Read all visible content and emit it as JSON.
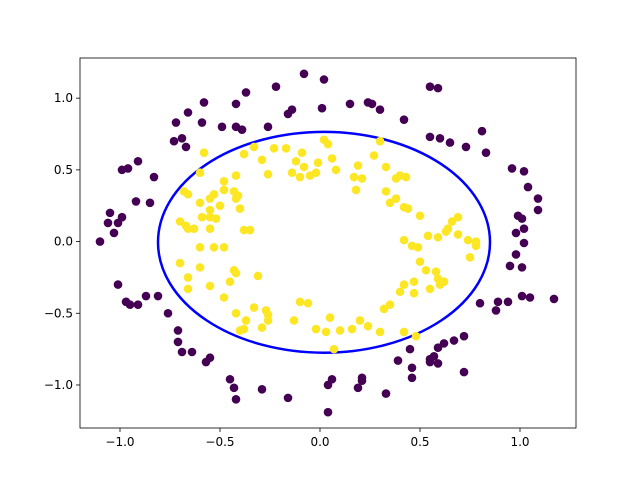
{
  "chart_data": {
    "type": "scatter",
    "title": "",
    "xlabel": "",
    "ylabel": "",
    "xlim": [
      -1.2,
      1.28
    ],
    "ylim": [
      -1.3,
      1.28
    ],
    "grid": false,
    "x_ticks": [
      {
        "value": -1.0,
        "label": "−1.0"
      },
      {
        "value": -0.5,
        "label": "−0.5"
      },
      {
        "value": 0.0,
        "label": "0.0"
      },
      {
        "value": 0.5,
        "label": "0.5"
      },
      {
        "value": 1.0,
        "label": "1.0"
      }
    ],
    "y_ticks": [
      {
        "value": -1.0,
        "label": "−1.0"
      },
      {
        "value": -0.5,
        "label": "−0.5"
      },
      {
        "value": 0.0,
        "label": "0.0"
      },
      {
        "value": 0.5,
        "label": "0.5"
      },
      {
        "value": 1.0,
        "label": "1.0"
      }
    ],
    "boundary": {
      "shape": "ellipse",
      "center": [
        0.02,
        -0.005
      ],
      "radius_x": 0.83,
      "radius_y": 0.77,
      "color": "#0000ff"
    },
    "series": [
      {
        "class": 0,
        "color": "#440154",
        "points": [
          [
            -0.08,
            1.17
          ],
          [
            0.02,
            1.13
          ],
          [
            -0.22,
            1.08
          ],
          [
            -0.37,
            1.04
          ],
          [
            -0.42,
            0.96
          ],
          [
            -0.58,
            0.97
          ],
          [
            -0.66,
            0.9
          ],
          [
            -0.72,
            0.83
          ],
          [
            -0.59,
            0.83
          ],
          [
            -0.49,
            0.8
          ],
          [
            -0.42,
            0.8
          ],
          [
            -0.39,
            0.78
          ],
          [
            -0.26,
            0.8
          ],
          [
            -0.16,
            0.89
          ],
          [
            -0.14,
            0.92
          ],
          [
            0.01,
            0.93
          ],
          [
            0.15,
            0.96
          ],
          [
            0.24,
            0.97
          ],
          [
            0.26,
            0.96
          ],
          [
            0.3,
            0.92
          ],
          [
            0.42,
            0.85
          ],
          [
            0.55,
            1.08
          ],
          [
            0.59,
            1.07
          ],
          [
            0.55,
            0.73
          ],
          [
            0.6,
            0.72
          ],
          [
            0.65,
            0.69
          ],
          [
            0.73,
            0.66
          ],
          [
            0.81,
            0.77
          ],
          [
            0.83,
            0.62
          ],
          [
            0.96,
            0.51
          ],
          [
            1.02,
            0.49
          ],
          [
            1.04,
            0.38
          ],
          [
            1.09,
            0.3
          ],
          [
            1.09,
            0.22
          ],
          [
            0.99,
            0.18
          ],
          [
            1.01,
            0.16
          ],
          [
            1.02,
            0.09
          ],
          [
            0.98,
            0.06
          ],
          [
            1.02,
            -0.01
          ],
          [
            0.98,
            -0.09
          ],
          [
            0.95,
            -0.17
          ],
          [
            1.01,
            -0.18
          ],
          [
            0.89,
            -0.42
          ],
          [
            0.88,
            -0.48
          ],
          [
            0.94,
            -0.42
          ],
          [
            1.01,
            -0.38
          ],
          [
            1.05,
            -0.39
          ],
          [
            1.17,
            -0.4
          ],
          [
            0.8,
            -0.43
          ],
          [
            0.72,
            -0.66
          ],
          [
            0.67,
            -0.69
          ],
          [
            0.62,
            -0.71
          ],
          [
            0.59,
            -0.74
          ],
          [
            0.57,
            -0.8
          ],
          [
            0.45,
            -0.75
          ],
          [
            0.55,
            -0.84
          ],
          [
            0.55,
            -0.82
          ],
          [
            0.59,
            -0.85
          ],
          [
            0.72,
            -0.91
          ],
          [
            0.46,
            -0.88
          ],
          [
            0.46,
            -0.95
          ],
          [
            0.39,
            -0.83
          ],
          [
            0.33,
            -1.06
          ],
          [
            0.21,
            -0.95
          ],
          [
            0.21,
            -0.97
          ],
          [
            0.19,
            -1.02
          ],
          [
            0.06,
            -0.96
          ],
          [
            0.04,
            -1.0
          ],
          [
            0.04,
            -1.19
          ],
          [
            -0.16,
            -1.09
          ],
          [
            -0.29,
            -1.03
          ],
          [
            -0.42,
            -1.1
          ],
          [
            -0.43,
            -1.02
          ],
          [
            -0.45,
            -0.96
          ],
          [
            -0.55,
            -0.81
          ],
          [
            -0.57,
            -0.84
          ],
          [
            -0.64,
            -0.77
          ],
          [
            -0.69,
            -0.77
          ],
          [
            -0.71,
            -0.62
          ],
          [
            -0.71,
            -0.7
          ],
          [
            -0.76,
            -0.5
          ],
          [
            -0.81,
            -0.38
          ],
          [
            -0.87,
            -0.38
          ],
          [
            -0.91,
            -0.44
          ],
          [
            -0.95,
            -0.44
          ],
          [
            -0.97,
            -0.42
          ],
          [
            -1.01,
            -0.3
          ],
          [
            -1.1,
            0.0
          ],
          [
            -1.03,
            0.06
          ],
          [
            -1.01,
            0.13
          ],
          [
            -1.06,
            0.13
          ],
          [
            -1.05,
            0.2
          ],
          [
            -0.99,
            0.17
          ],
          [
            -0.92,
            0.28
          ],
          [
            -0.85,
            0.27
          ],
          [
            -0.91,
            0.56
          ],
          [
            -0.83,
            0.45
          ],
          [
            -0.99,
            0.5
          ],
          [
            -0.96,
            0.51
          ],
          [
            -0.73,
            0.7
          ],
          [
            -0.69,
            0.72
          ],
          [
            -0.67,
            0.66
          ]
        ]
      },
      {
        "class": 1,
        "color": "#fde725",
        "points": [
          [
            -0.23,
            0.65
          ],
          [
            -0.17,
            0.65
          ],
          [
            -0.12,
            0.56
          ],
          [
            -0.14,
            0.48
          ],
          [
            -0.26,
            0.47
          ],
          [
            -0.29,
            0.57
          ],
          [
            -0.38,
            0.61
          ],
          [
            -0.33,
            0.66
          ],
          [
            -0.42,
            0.46
          ],
          [
            -0.48,
            0.42
          ],
          [
            -0.6,
            0.48
          ],
          [
            -0.58,
            0.62
          ],
          [
            -0.68,
            0.35
          ],
          [
            -0.66,
            0.33
          ],
          [
            -0.53,
            0.33
          ],
          [
            -0.43,
            0.35
          ],
          [
            -0.48,
            0.36
          ],
          [
            -0.42,
            0.3
          ],
          [
            -0.55,
            0.3
          ],
          [
            -0.6,
            0.27
          ],
          [
            -0.55,
            0.22
          ],
          [
            -0.5,
            0.25
          ],
          [
            -0.41,
            0.32
          ],
          [
            -0.4,
            0.23
          ],
          [
            -0.55,
            0.17
          ],
          [
            -0.59,
            0.17
          ],
          [
            -0.52,
            0.16
          ],
          [
            -0.7,
            0.14
          ],
          [
            -0.67,
            0.11
          ],
          [
            -0.66,
            0.09
          ],
          [
            -0.63,
            0.09
          ],
          [
            -0.55,
            0.09
          ],
          [
            -0.38,
            0.08
          ],
          [
            -0.35,
            0.08
          ],
          [
            -0.6,
            -0.04
          ],
          [
            -0.53,
            -0.04
          ],
          [
            -0.48,
            -0.04
          ],
          [
            -0.7,
            -0.15
          ],
          [
            -0.6,
            -0.18
          ],
          [
            -0.43,
            -0.2
          ],
          [
            -0.42,
            -0.22
          ],
          [
            -0.31,
            -0.24
          ],
          [
            -0.45,
            -0.28
          ],
          [
            -0.55,
            -0.31
          ],
          [
            -0.66,
            -0.25
          ],
          [
            -0.66,
            -0.33
          ],
          [
            -0.48,
            -0.39
          ],
          [
            -0.33,
            -0.46
          ],
          [
            -0.27,
            -0.48
          ],
          [
            -0.42,
            -0.5
          ],
          [
            -0.37,
            -0.55
          ],
          [
            -0.26,
            -0.51
          ],
          [
            -0.26,
            -0.55
          ],
          [
            -0.29,
            -0.6
          ],
          [
            -0.38,
            -0.61
          ],
          [
            -0.4,
            -0.62
          ],
          [
            -0.13,
            -0.55
          ],
          [
            -0.1,
            -0.42
          ],
          [
            -0.06,
            -0.43
          ],
          [
            0.05,
            -0.53
          ],
          [
            -0.02,
            -0.61
          ],
          [
            0.03,
            -0.63
          ],
          [
            0.1,
            -0.62
          ],
          [
            0.07,
            -0.75
          ],
          [
            0.16,
            -0.61
          ],
          [
            0.2,
            -0.55
          ],
          [
            0.24,
            -0.59
          ],
          [
            0.3,
            -0.63
          ],
          [
            0.42,
            -0.63
          ],
          [
            0.48,
            -0.66
          ],
          [
            0.32,
            -0.47
          ],
          [
            0.35,
            -0.44
          ],
          [
            0.4,
            -0.35
          ],
          [
            0.42,
            -0.3
          ],
          [
            0.47,
            -0.28
          ],
          [
            0.47,
            -0.36
          ],
          [
            0.55,
            -0.33
          ],
          [
            0.62,
            -0.28
          ],
          [
            0.58,
            -0.21
          ],
          [
            0.59,
            -0.26
          ],
          [
            0.5,
            -0.14
          ],
          [
            0.53,
            -0.2
          ],
          [
            0.6,
            -0.3
          ],
          [
            0.49,
            -0.04
          ],
          [
            0.46,
            -0.03
          ],
          [
            0.42,
            0.01
          ],
          [
            0.54,
            0.04
          ],
          [
            0.59,
            0.03
          ],
          [
            0.69,
            0.05
          ],
          [
            0.63,
            0.07
          ],
          [
            0.64,
            0.09
          ],
          [
            0.66,
            0.14
          ],
          [
            0.69,
            0.17
          ],
          [
            0.74,
            0.01
          ],
          [
            0.78,
            0.0
          ],
          [
            0.78,
            -0.03
          ],
          [
            0.75,
            -0.11
          ],
          [
            0.5,
            0.18
          ],
          [
            0.44,
            0.23
          ],
          [
            0.42,
            0.24
          ],
          [
            0.35,
            0.27
          ],
          [
            0.38,
            0.3
          ],
          [
            0.33,
            0.35
          ],
          [
            0.38,
            0.44
          ],
          [
            0.4,
            0.46
          ],
          [
            0.43,
            0.45
          ],
          [
            0.33,
            0.52
          ],
          [
            0.19,
            0.53
          ],
          [
            0.17,
            0.45
          ],
          [
            0.21,
            0.44
          ],
          [
            0.18,
            0.36
          ],
          [
            0.08,
            0.5
          ],
          [
            0.06,
            0.58
          ],
          [
            -0.01,
            0.55
          ],
          [
            -0.02,
            0.48
          ],
          [
            -0.05,
            0.46
          ],
          [
            -0.1,
            0.45
          ],
          [
            -0.08,
            0.52
          ],
          [
            -0.09,
            0.62
          ],
          [
            0.02,
            0.71
          ],
          [
            0.04,
            0.68
          ],
          [
            0.3,
            0.7
          ],
          [
            0.27,
            0.6
          ]
        ]
      }
    ]
  }
}
